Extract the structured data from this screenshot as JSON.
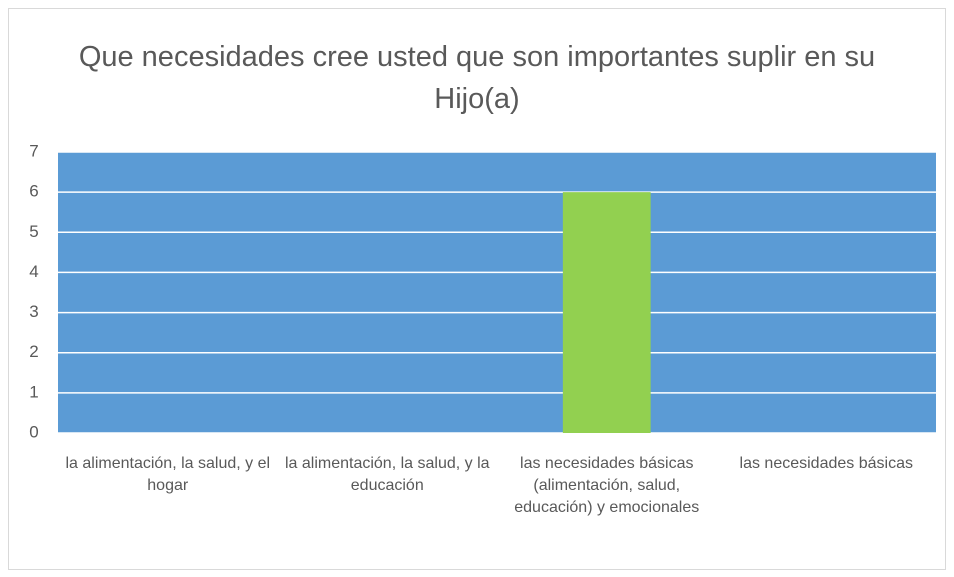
{
  "chart_data": {
    "type": "bar",
    "title": "Que necesidades cree usted que son importantes suplir en su Hijo(a)",
    "categories": [
      "la alimentación, la salud, y el hogar",
      "la alimentación, la salud, y la educación",
      "las necesidades básicas (alimentación, salud, educación) y emocionales",
      "las necesidades básicas"
    ],
    "values": [
      0,
      0,
      6,
      0
    ],
    "color": "#92d050",
    "plot_background": "#5b9bd5",
    "ylim": [
      0,
      7
    ],
    "yticks": [
      0,
      1,
      2,
      3,
      4,
      5,
      6,
      7
    ],
    "grid": true
  }
}
